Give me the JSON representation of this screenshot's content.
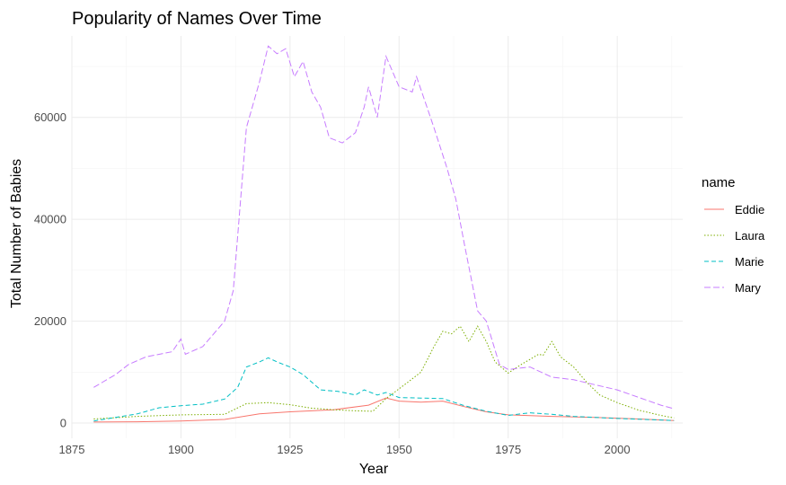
{
  "chart_data": {
    "type": "line",
    "title": "Popularity of Names Over Time",
    "xlabel": "Year",
    "ylabel": "Total Number of Babies",
    "xlim": [
      1875,
      2015
    ],
    "ylim": [
      -3000,
      76000
    ],
    "x_ticks": [
      1875,
      1900,
      1925,
      1950,
      1975,
      2000
    ],
    "x_tick_labels": [
      "1875",
      "1900",
      "1925",
      "1950",
      "1975",
      "2000"
    ],
    "y_ticks": [
      0,
      20000,
      40000,
      60000
    ],
    "y_tick_labels": [
      "0",
      "20000",
      "40000",
      "60000"
    ],
    "grid": true,
    "legend": {
      "title": "name",
      "position": "right"
    },
    "series": [
      {
        "name": "Eddie",
        "color": "#F8766D",
        "dash": "solid",
        "points": [
          [
            1880,
            200
          ],
          [
            1890,
            250
          ],
          [
            1900,
            400
          ],
          [
            1910,
            700
          ],
          [
            1918,
            1800
          ],
          [
            1925,
            2200
          ],
          [
            1935,
            2600
          ],
          [
            1943,
            3500
          ],
          [
            1947,
            4900
          ],
          [
            1950,
            4300
          ],
          [
            1955,
            4100
          ],
          [
            1960,
            4300
          ],
          [
            1965,
            3200
          ],
          [
            1970,
            2200
          ],
          [
            1975,
            1600
          ],
          [
            1985,
            1300
          ],
          [
            1995,
            1100
          ],
          [
            2005,
            800
          ],
          [
            2013,
            500
          ]
        ]
      },
      {
        "name": "Laura",
        "color": "#7CAE00",
        "dash": "dotted",
        "points": [
          [
            1880,
            800
          ],
          [
            1890,
            1300
          ],
          [
            1900,
            1600
          ],
          [
            1910,
            1700
          ],
          [
            1915,
            3800
          ],
          [
            1920,
            4000
          ],
          [
            1925,
            3600
          ],
          [
            1930,
            2900
          ],
          [
            1935,
            2600
          ],
          [
            1940,
            2400
          ],
          [
            1944,
            2300
          ],
          [
            1947,
            4800
          ],
          [
            1952,
            8000
          ],
          [
            1955,
            10000
          ],
          [
            1958,
            15000
          ],
          [
            1960,
            18000
          ],
          [
            1962,
            17500
          ],
          [
            1964,
            19000
          ],
          [
            1966,
            16000
          ],
          [
            1968,
            19000
          ],
          [
            1970,
            16000
          ],
          [
            1972,
            12000
          ],
          [
            1975,
            9800
          ],
          [
            1978,
            11500
          ],
          [
            1982,
            13500
          ],
          [
            1983,
            13300
          ],
          [
            1985,
            16000
          ],
          [
            1987,
            13000
          ],
          [
            1990,
            11000
          ],
          [
            1993,
            8000
          ],
          [
            1996,
            5500
          ],
          [
            2000,
            4000
          ],
          [
            2005,
            2500
          ],
          [
            2010,
            1500
          ],
          [
            2013,
            1000
          ]
        ]
      },
      {
        "name": "Marie",
        "color": "#00BFC4",
        "dash": "dashed",
        "points": [
          [
            1880,
            400
          ],
          [
            1890,
            1800
          ],
          [
            1895,
            3000
          ],
          [
            1900,
            3400
          ],
          [
            1905,
            3700
          ],
          [
            1910,
            4700
          ],
          [
            1913,
            7000
          ],
          [
            1915,
            11000
          ],
          [
            1918,
            12000
          ],
          [
            1920,
            12800
          ],
          [
            1922,
            12000
          ],
          [
            1925,
            11000
          ],
          [
            1928,
            9500
          ],
          [
            1932,
            6500
          ],
          [
            1936,
            6200
          ],
          [
            1940,
            5500
          ],
          [
            1942,
            6500
          ],
          [
            1945,
            5500
          ],
          [
            1947,
            6000
          ],
          [
            1950,
            5000
          ],
          [
            1955,
            4900
          ],
          [
            1960,
            4800
          ],
          [
            1965,
            3400
          ],
          [
            1970,
            2300
          ],
          [
            1975,
            1500
          ],
          [
            1980,
            2000
          ],
          [
            1985,
            1700
          ],
          [
            1990,
            1300
          ],
          [
            2000,
            900
          ],
          [
            2013,
            500
          ]
        ]
      },
      {
        "name": "Mary",
        "color": "#C77CFF",
        "dash": "longdash",
        "points": [
          [
            1880,
            7000
          ],
          [
            1885,
            9500
          ],
          [
            1888,
            11500
          ],
          [
            1892,
            13000
          ],
          [
            1898,
            14000
          ],
          [
            1900,
            16500
          ],
          [
            1901,
            13500
          ],
          [
            1905,
            15000
          ],
          [
            1910,
            20000
          ],
          [
            1912,
            26000
          ],
          [
            1915,
            58000
          ],
          [
            1918,
            67000
          ],
          [
            1920,
            74000
          ],
          [
            1922,
            72500
          ],
          [
            1924,
            73500
          ],
          [
            1926,
            68000
          ],
          [
            1928,
            71000
          ],
          [
            1930,
            65000
          ],
          [
            1932,
            62000
          ],
          [
            1934,
            56000
          ],
          [
            1937,
            55000
          ],
          [
            1940,
            57000
          ],
          [
            1942,
            62000
          ],
          [
            1943,
            66000
          ],
          [
            1945,
            60000
          ],
          [
            1947,
            72000
          ],
          [
            1950,
            66000
          ],
          [
            1953,
            65000
          ],
          [
            1954,
            68000
          ],
          [
            1956,
            63000
          ],
          [
            1958,
            58000
          ],
          [
            1961,
            50000
          ],
          [
            1963,
            44000
          ],
          [
            1965,
            35000
          ],
          [
            1968,
            22000
          ],
          [
            1970,
            20000
          ],
          [
            1973,
            11500
          ],
          [
            1975,
            10500
          ],
          [
            1980,
            11000
          ],
          [
            1985,
            9000
          ],
          [
            1990,
            8500
          ],
          [
            1995,
            7500
          ],
          [
            2000,
            6500
          ],
          [
            2005,
            5000
          ],
          [
            2010,
            3500
          ],
          [
            2013,
            2800
          ]
        ]
      }
    ]
  }
}
